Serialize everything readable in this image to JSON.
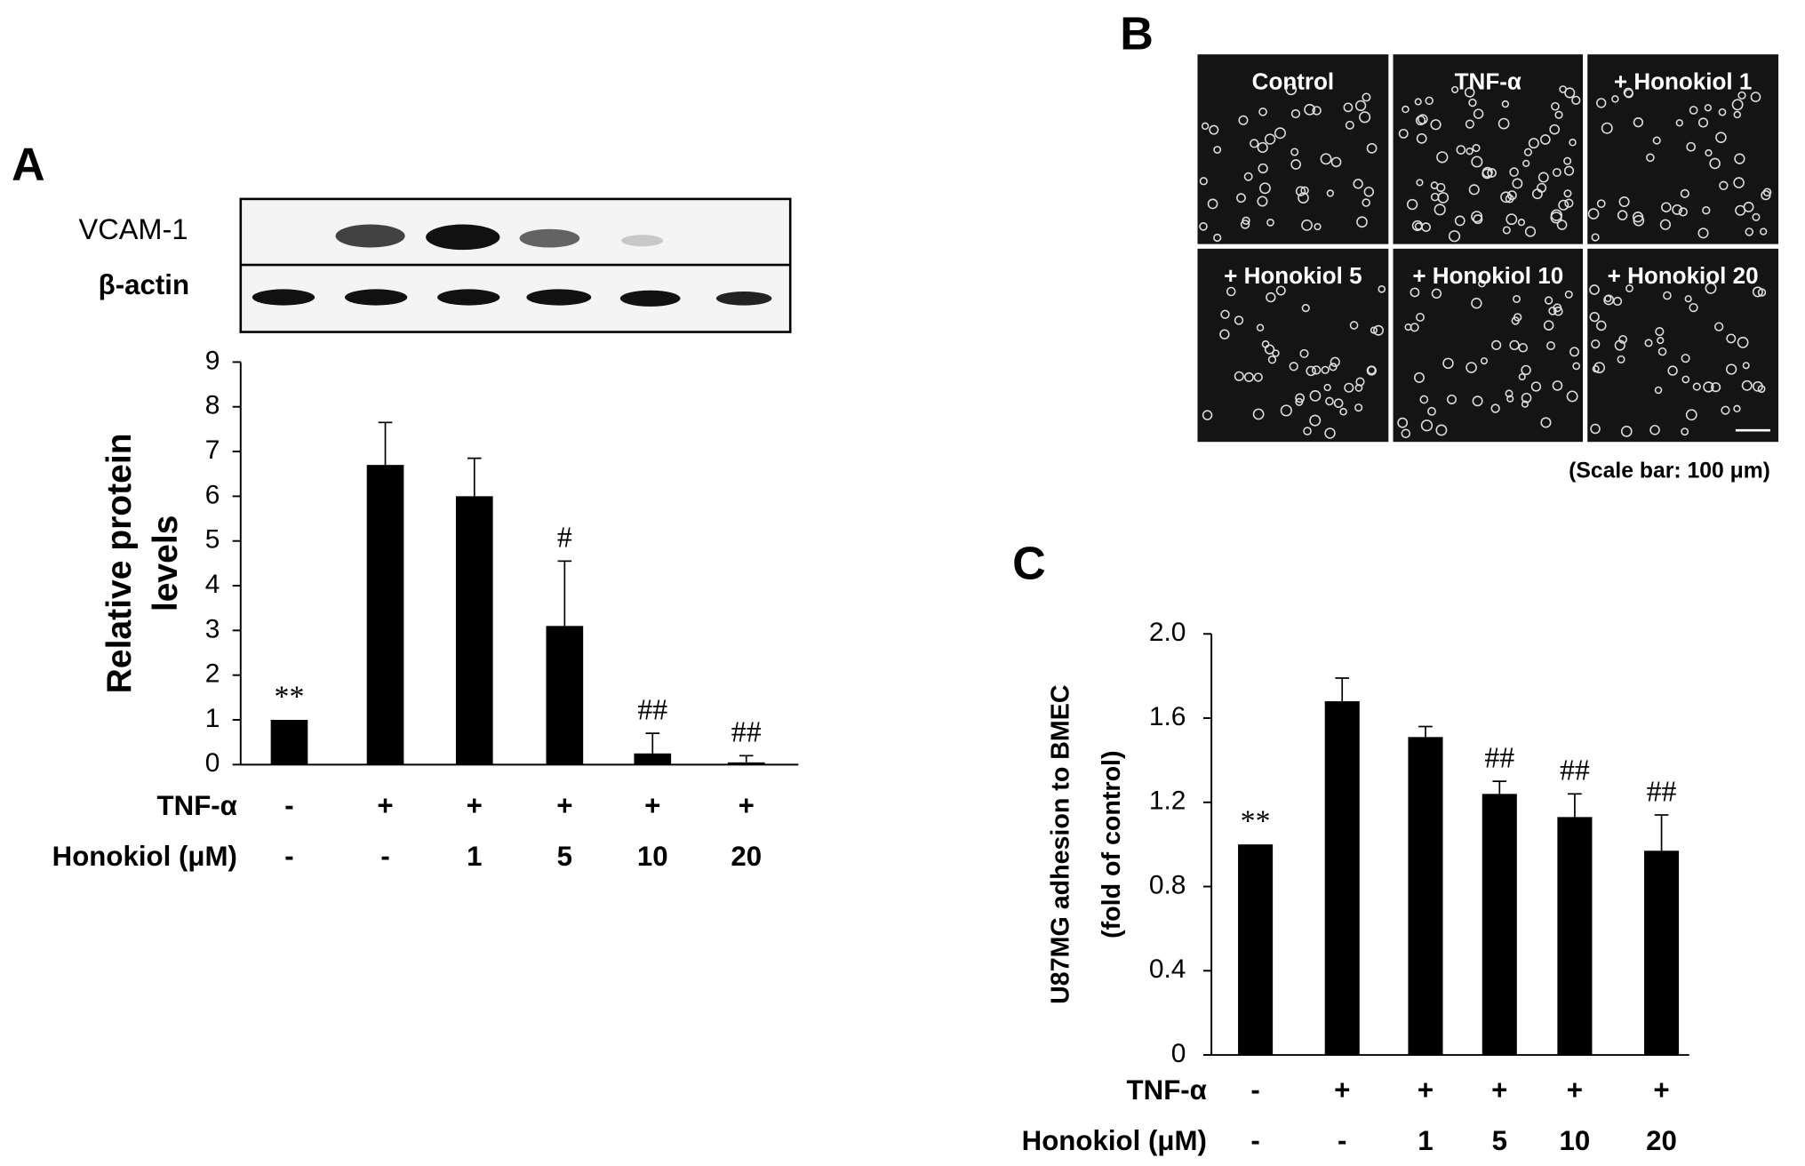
{
  "chart_data": [
    {
      "type": "bar",
      "panel_label": "A",
      "ylabel": [
        "Relative protein",
        "levels"
      ],
      "values": [
        1,
        6.7,
        6.0,
        3.1,
        0.25,
        0.05
      ],
      "errors": [
        0,
        0.95,
        0.85,
        1.45,
        0.45,
        0.15
      ],
      "annotations": [
        "**",
        null,
        null,
        "#",
        "##",
        "##"
      ],
      "ylim": [
        0,
        9
      ],
      "yticks": [
        0,
        1,
        2,
        3,
        4,
        5,
        6,
        7,
        8,
        9
      ],
      "color": "#000000",
      "rows": [
        {
          "label": "TNF-α",
          "values": [
            "-",
            "+",
            "+",
            "+",
            "+",
            "+"
          ]
        },
        {
          "label": "Honokiol (μM)",
          "values": [
            "-",
            "-",
            "1",
            "5",
            "10",
            "20"
          ]
        }
      ]
    },
    {
      "type": "bar",
      "panel_label": "C",
      "ylabel": [
        "U87MG adhesion to BMEC",
        "(fold of control)"
      ],
      "values": [
        1.0,
        1.68,
        1.51,
        1.24,
        1.13,
        0.97
      ],
      "errors": [
        0,
        0.11,
        0.05,
        0.06,
        0.11,
        0.17
      ],
      "annotations": [
        "**",
        null,
        null,
        "##",
        "##",
        "##"
      ],
      "ylim": [
        0,
        2
      ],
      "yticks": [
        0,
        0.4,
        0.8,
        1.2,
        1.6,
        {
          "value": 2,
          "label": "2.0"
        }
      ],
      "color": "#000000",
      "rows": [
        {
          "label": "TNF-α",
          "values": [
            "-",
            "+",
            "+",
            "+",
            "+",
            "+"
          ]
        },
        {
          "label": "Honokiol (μM)",
          "values": [
            "-",
            "-",
            "1",
            "5",
            "10",
            "20"
          ]
        }
      ]
    }
  ],
  "blot": {
    "labels": [
      "VCAM-1",
      "β-actin"
    ]
  },
  "image_panel": {
    "panel_label": "B",
    "labels": [
      "Control",
      "TNF-α",
      "+ Honokiol 1",
      "+ Honokiol 5",
      "+ Honokiol 10",
      "+ Honokiol 20"
    ],
    "caption": "(Scale bar: 100 μm)"
  }
}
